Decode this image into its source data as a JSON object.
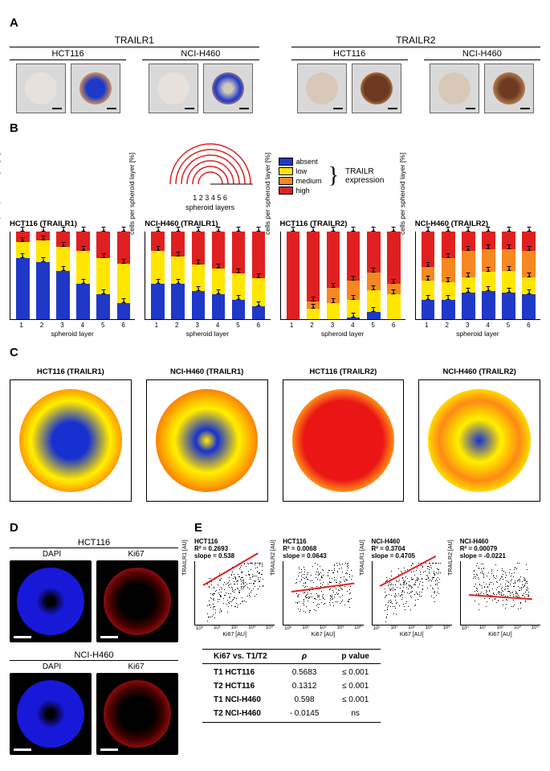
{
  "colors": {
    "absent": "#2038c8",
    "low": "#ffe600",
    "medium": "#f58820",
    "high": "#e02020",
    "dapi": "#1818d8",
    "ki67": "#d81818"
  },
  "legend": {
    "items": [
      "absent",
      "low",
      "medium",
      "high"
    ],
    "bracket_label": "TRAILR\nexpression",
    "layers_caption": "spheroid layers",
    "layer_nums": "1 2 3 4 5 6"
  },
  "panelA": {
    "groups": [
      {
        "receptor": "TRAILR1",
        "lines": [
          "HCT116",
          "NCI-H460"
        ]
      },
      {
        "receptor": "TRAILR2",
        "lines": [
          "HCT116",
          "NCI-H460"
        ]
      }
    ]
  },
  "panelB": {
    "ylabel": "cells per spheroid layer [%]",
    "xlabel": "spheroid layer",
    "xcats": [
      "1",
      "2",
      "3",
      "4",
      "5",
      "6"
    ],
    "charts": [
      {
        "title": "HCT116 (TRAILR1)",
        "stacks": [
          {
            "absent": 70,
            "low": 18,
            "medium": 0,
            "high": 12
          },
          {
            "absent": 65,
            "low": 25,
            "medium": 0,
            "high": 10
          },
          {
            "absent": 55,
            "low": 28,
            "medium": 0,
            "high": 17
          },
          {
            "absent": 40,
            "low": 38,
            "medium": 0,
            "high": 22
          },
          {
            "absent": 28,
            "low": 42,
            "medium": 0,
            "high": 30
          },
          {
            "absent": 18,
            "low": 45,
            "medium": 0,
            "high": 37
          }
        ]
      },
      {
        "title": "NCI-H460 (TRAILR1)",
        "stacks": [
          {
            "absent": 40,
            "low": 38,
            "medium": 0,
            "high": 22
          },
          {
            "absent": 40,
            "low": 32,
            "medium": 0,
            "high": 28
          },
          {
            "absent": 32,
            "low": 30,
            "medium": 0,
            "high": 38
          },
          {
            "absent": 28,
            "low": 30,
            "medium": 0,
            "high": 42
          },
          {
            "absent": 22,
            "low": 30,
            "medium": 0,
            "high": 48
          },
          {
            "absent": 15,
            "low": 32,
            "medium": 0,
            "high": 53
          }
        ]
      },
      {
        "title": "HCT116 (TRAILR2)",
        "stacks": [
          {
            "absent": 0,
            "low": 0,
            "medium": 0,
            "high": 100
          },
          {
            "absent": 0,
            "low": 12,
            "medium": 8,
            "high": 80
          },
          {
            "absent": 0,
            "low": 18,
            "medium": 18,
            "high": 64
          },
          {
            "absent": 2,
            "low": 20,
            "medium": 22,
            "high": 56
          },
          {
            "absent": 8,
            "low": 25,
            "medium": 20,
            "high": 47
          },
          {
            "absent": 0,
            "low": 28,
            "medium": 12,
            "high": 60
          }
        ]
      },
      {
        "title": "NCI-H460 (TRAILR2)",
        "stacks": [
          {
            "absent": 22,
            "low": 22,
            "medium": 16,
            "high": 40
          },
          {
            "absent": 22,
            "low": 20,
            "medium": 28,
            "high": 30
          },
          {
            "absent": 30,
            "low": 18,
            "medium": 30,
            "high": 22
          },
          {
            "absent": 32,
            "low": 22,
            "medium": 26,
            "high": 20
          },
          {
            "absent": 30,
            "low": 25,
            "medium": 25,
            "high": 20
          },
          {
            "absent": 28,
            "low": 20,
            "medium": 30,
            "high": 22
          }
        ]
      }
    ]
  },
  "panelC": {
    "titles": [
      "HCT116 (TRAILR1)",
      "NCI-H460 (TRAILR1)",
      "HCT116 (TRAILR2)",
      "NCI-H460 (TRAILR2)"
    ],
    "gradients": [
      "radial-gradient(circle, #2038c8 0%, #2038c8 25%, #ffe600 55%, #e02020 95%)",
      "radial-gradient(circle, #ffe600 0%, #2038c8 15%, #ffe600 45%, #e02020 95%)",
      "radial-gradient(circle, #e02020 0%, #e02020 55%, #f58820 70%, #ffe600 90%)",
      "radial-gradient(circle, #2038c8 0%, #ffe600 30%, #f58820 55%, #ffe600 75%, #e02020 95%)"
    ]
  },
  "panelD": {
    "lines": [
      "HCT116",
      "NCI-H460"
    ],
    "channels": [
      "DAPI",
      "Ki67"
    ]
  },
  "panelE": {
    "scatters": [
      {
        "title": "HCT116\nR² = 0.2693\nslope = 0.538",
        "ylab": "TRAILR1 [AU]",
        "slope": 35
      },
      {
        "title": "HCT116\nR² = 0.0068\nslope = 0.0643",
        "ylab": "TRAILR2 [AU]",
        "slope": 8
      },
      {
        "title": "NCI-H460\nR² = 0.3704\nslope = 0.4705",
        "ylab": "TRAILR1 [AU]",
        "slope": 32
      },
      {
        "title": "NCI-H460\nR² = 0.00079\nslope = -0.0221",
        "ylab": "TRAILR2 [AU]",
        "slope": -4
      }
    ],
    "xlab": "Ki67 [AU]",
    "xticks": [
      "10⁰",
      "10¹",
      "10²",
      "10³",
      "10⁴"
    ],
    "table": {
      "head": [
        "Ki67 vs. T1/T2",
        "ρ",
        "p value"
      ],
      "rows": [
        [
          "T1 HCT116",
          "0.5683",
          "≤ 0.001"
        ],
        [
          "T2 HCT116",
          "0.1312",
          "≤ 0.001"
        ],
        [
          "T1 NCI-H460",
          "0.598",
          "≤ 0.001"
        ],
        [
          "T2 NCI-H460",
          "- 0.0145",
          "ns"
        ]
      ]
    }
  }
}
